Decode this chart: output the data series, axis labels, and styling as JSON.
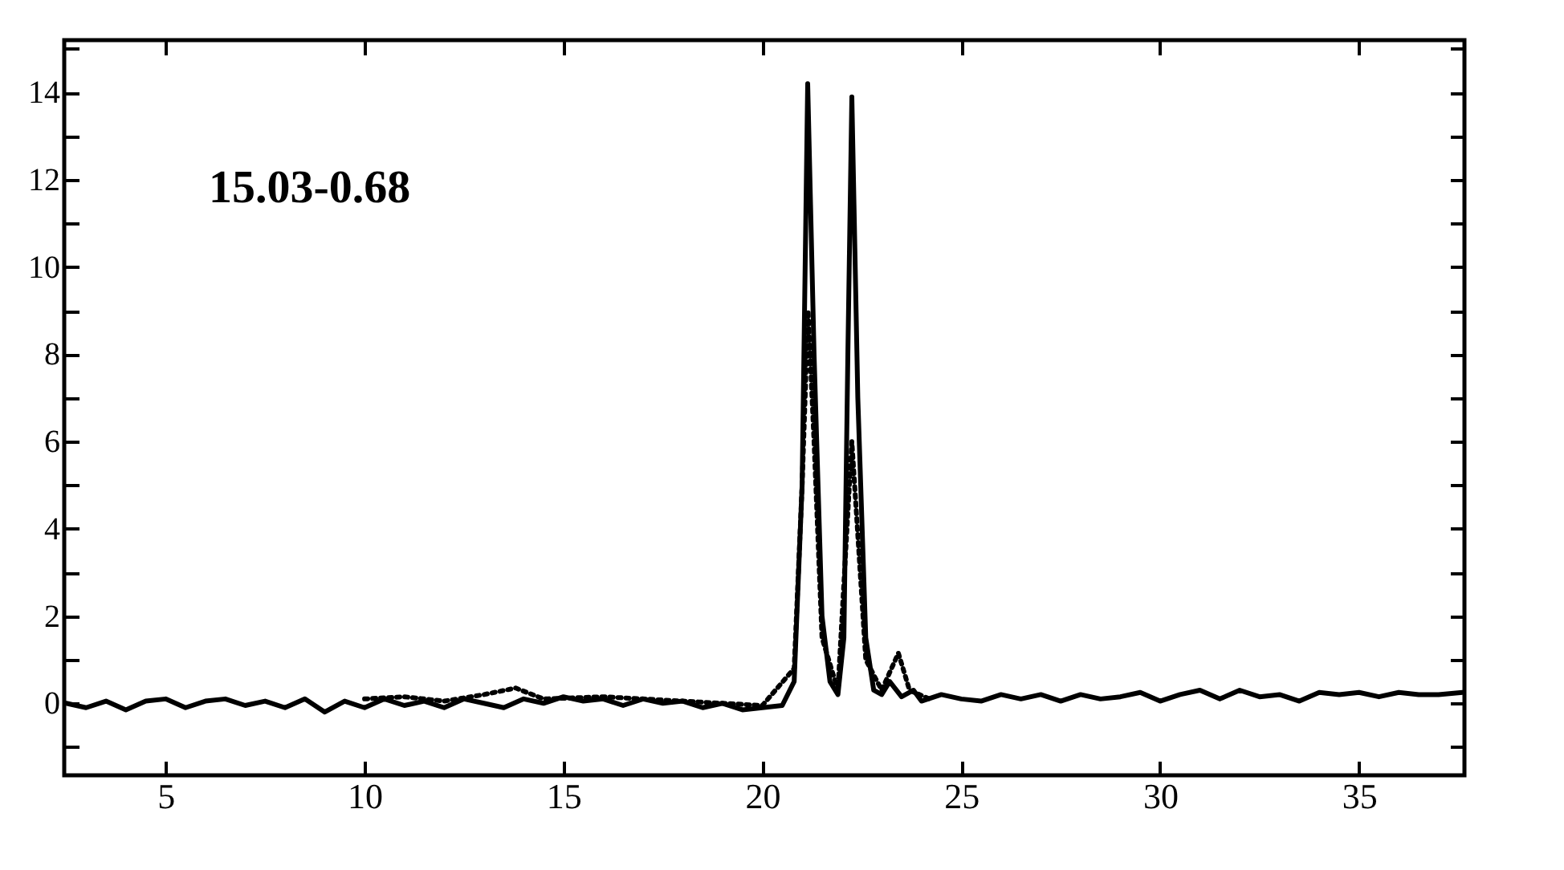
{
  "chart_data": {
    "type": "line",
    "annotations": [
      "15.03-0.68"
    ],
    "xlim": [
      2.45,
      37.65
    ],
    "xticks": [
      5,
      10,
      15,
      20,
      25,
      30,
      35
    ],
    "ylim": [
      -1.65,
      15.2
    ],
    "yticks": [
      {
        "value": -1,
        "label": null
      },
      0,
      {
        "value": 1,
        "label": null
      },
      2,
      {
        "value": 3,
        "label": null
      },
      4,
      {
        "value": 5,
        "label": null
      },
      6,
      {
        "value": 7,
        "label": null
      },
      8,
      {
        "value": 9,
        "label": null
      },
      10,
      {
        "value": 11,
        "label": null
      },
      12,
      {
        "value": 13,
        "label": null
      },
      14,
      {
        "value": 15,
        "label": null
      }
    ],
    "grid": false,
    "series": [
      {
        "color": "#000000",
        "line_style": "solid",
        "x": [
          2.5,
          3,
          3.5,
          4,
          4.5,
          5,
          5.5,
          6,
          6.5,
          7,
          7.5,
          8,
          8.5,
          9,
          9.5,
          10,
          10.5,
          11,
          11.5,
          12,
          12.5,
          13,
          13.5,
          14,
          14.5,
          15,
          15.5,
          16,
          16.5,
          17,
          17.5,
          18,
          18.5,
          19,
          19.5,
          20,
          20.5,
          20.8,
          21.0,
          21.14,
          21.3,
          21.5,
          21.7,
          21.9,
          22.05,
          22.15,
          22.25,
          22.4,
          22.6,
          22.8,
          23.0,
          23.2,
          23.5,
          23.8,
          24,
          24.5,
          25,
          25.5,
          26,
          26.5,
          27,
          27.5,
          28,
          28.5,
          29,
          29.5,
          30,
          30.5,
          31,
          31.5,
          32,
          32.5,
          33,
          33.5,
          34,
          34.5,
          35,
          35.5,
          36,
          36.5,
          37,
          37.6
        ],
        "values": [
          0,
          -0.1,
          0.05,
          -0.15,
          0.05,
          0.1,
          -0.1,
          0.05,
          0.1,
          -0.05,
          0.05,
          -0.1,
          0.1,
          -0.2,
          0.05,
          -0.1,
          0.1,
          -0.05,
          0.05,
          -0.1,
          0.1,
          0,
          -0.1,
          0.1,
          0,
          0.15,
          0.05,
          0.1,
          -0.05,
          0.1,
          0,
          0.05,
          -0.1,
          0,
          -0.15,
          -0.1,
          -0.05,
          0.5,
          5,
          14.2,
          8,
          2,
          0.5,
          0.2,
          1.5,
          8,
          13.9,
          7,
          1.5,
          0.3,
          0.2,
          0.5,
          0.15,
          0.3,
          0.05,
          0.2,
          0.1,
          0.05,
          0.2,
          0.1,
          0.2,
          0.05,
          0.2,
          0.1,
          0.15,
          0.25,
          0.05,
          0.2,
          0.3,
          0.1,
          0.3,
          0.15,
          0.2,
          0.05,
          0.25,
          0.2,
          0.25,
          0.15,
          0.25,
          0.2,
          0.2,
          0.25
        ]
      },
      {
        "color": "#000000",
        "line_style": "dotted",
        "x": [
          10,
          11,
          12,
          13,
          13.8,
          14.5,
          16,
          18,
          20,
          20.8,
          21.0,
          21.15,
          21.3,
          21.5,
          21.9,
          22.25,
          22.6,
          23.0,
          23.42,
          23.7,
          24.2
        ],
        "values": [
          0.1,
          0.15,
          0.05,
          0.2,
          0.35,
          0.1,
          0.15,
          0.05,
          -0.05,
          0.8,
          5,
          9,
          6,
          1.5,
          0.3,
          6,
          1,
          0.3,
          1.15,
          0.3,
          0.1
        ]
      }
    ]
  }
}
